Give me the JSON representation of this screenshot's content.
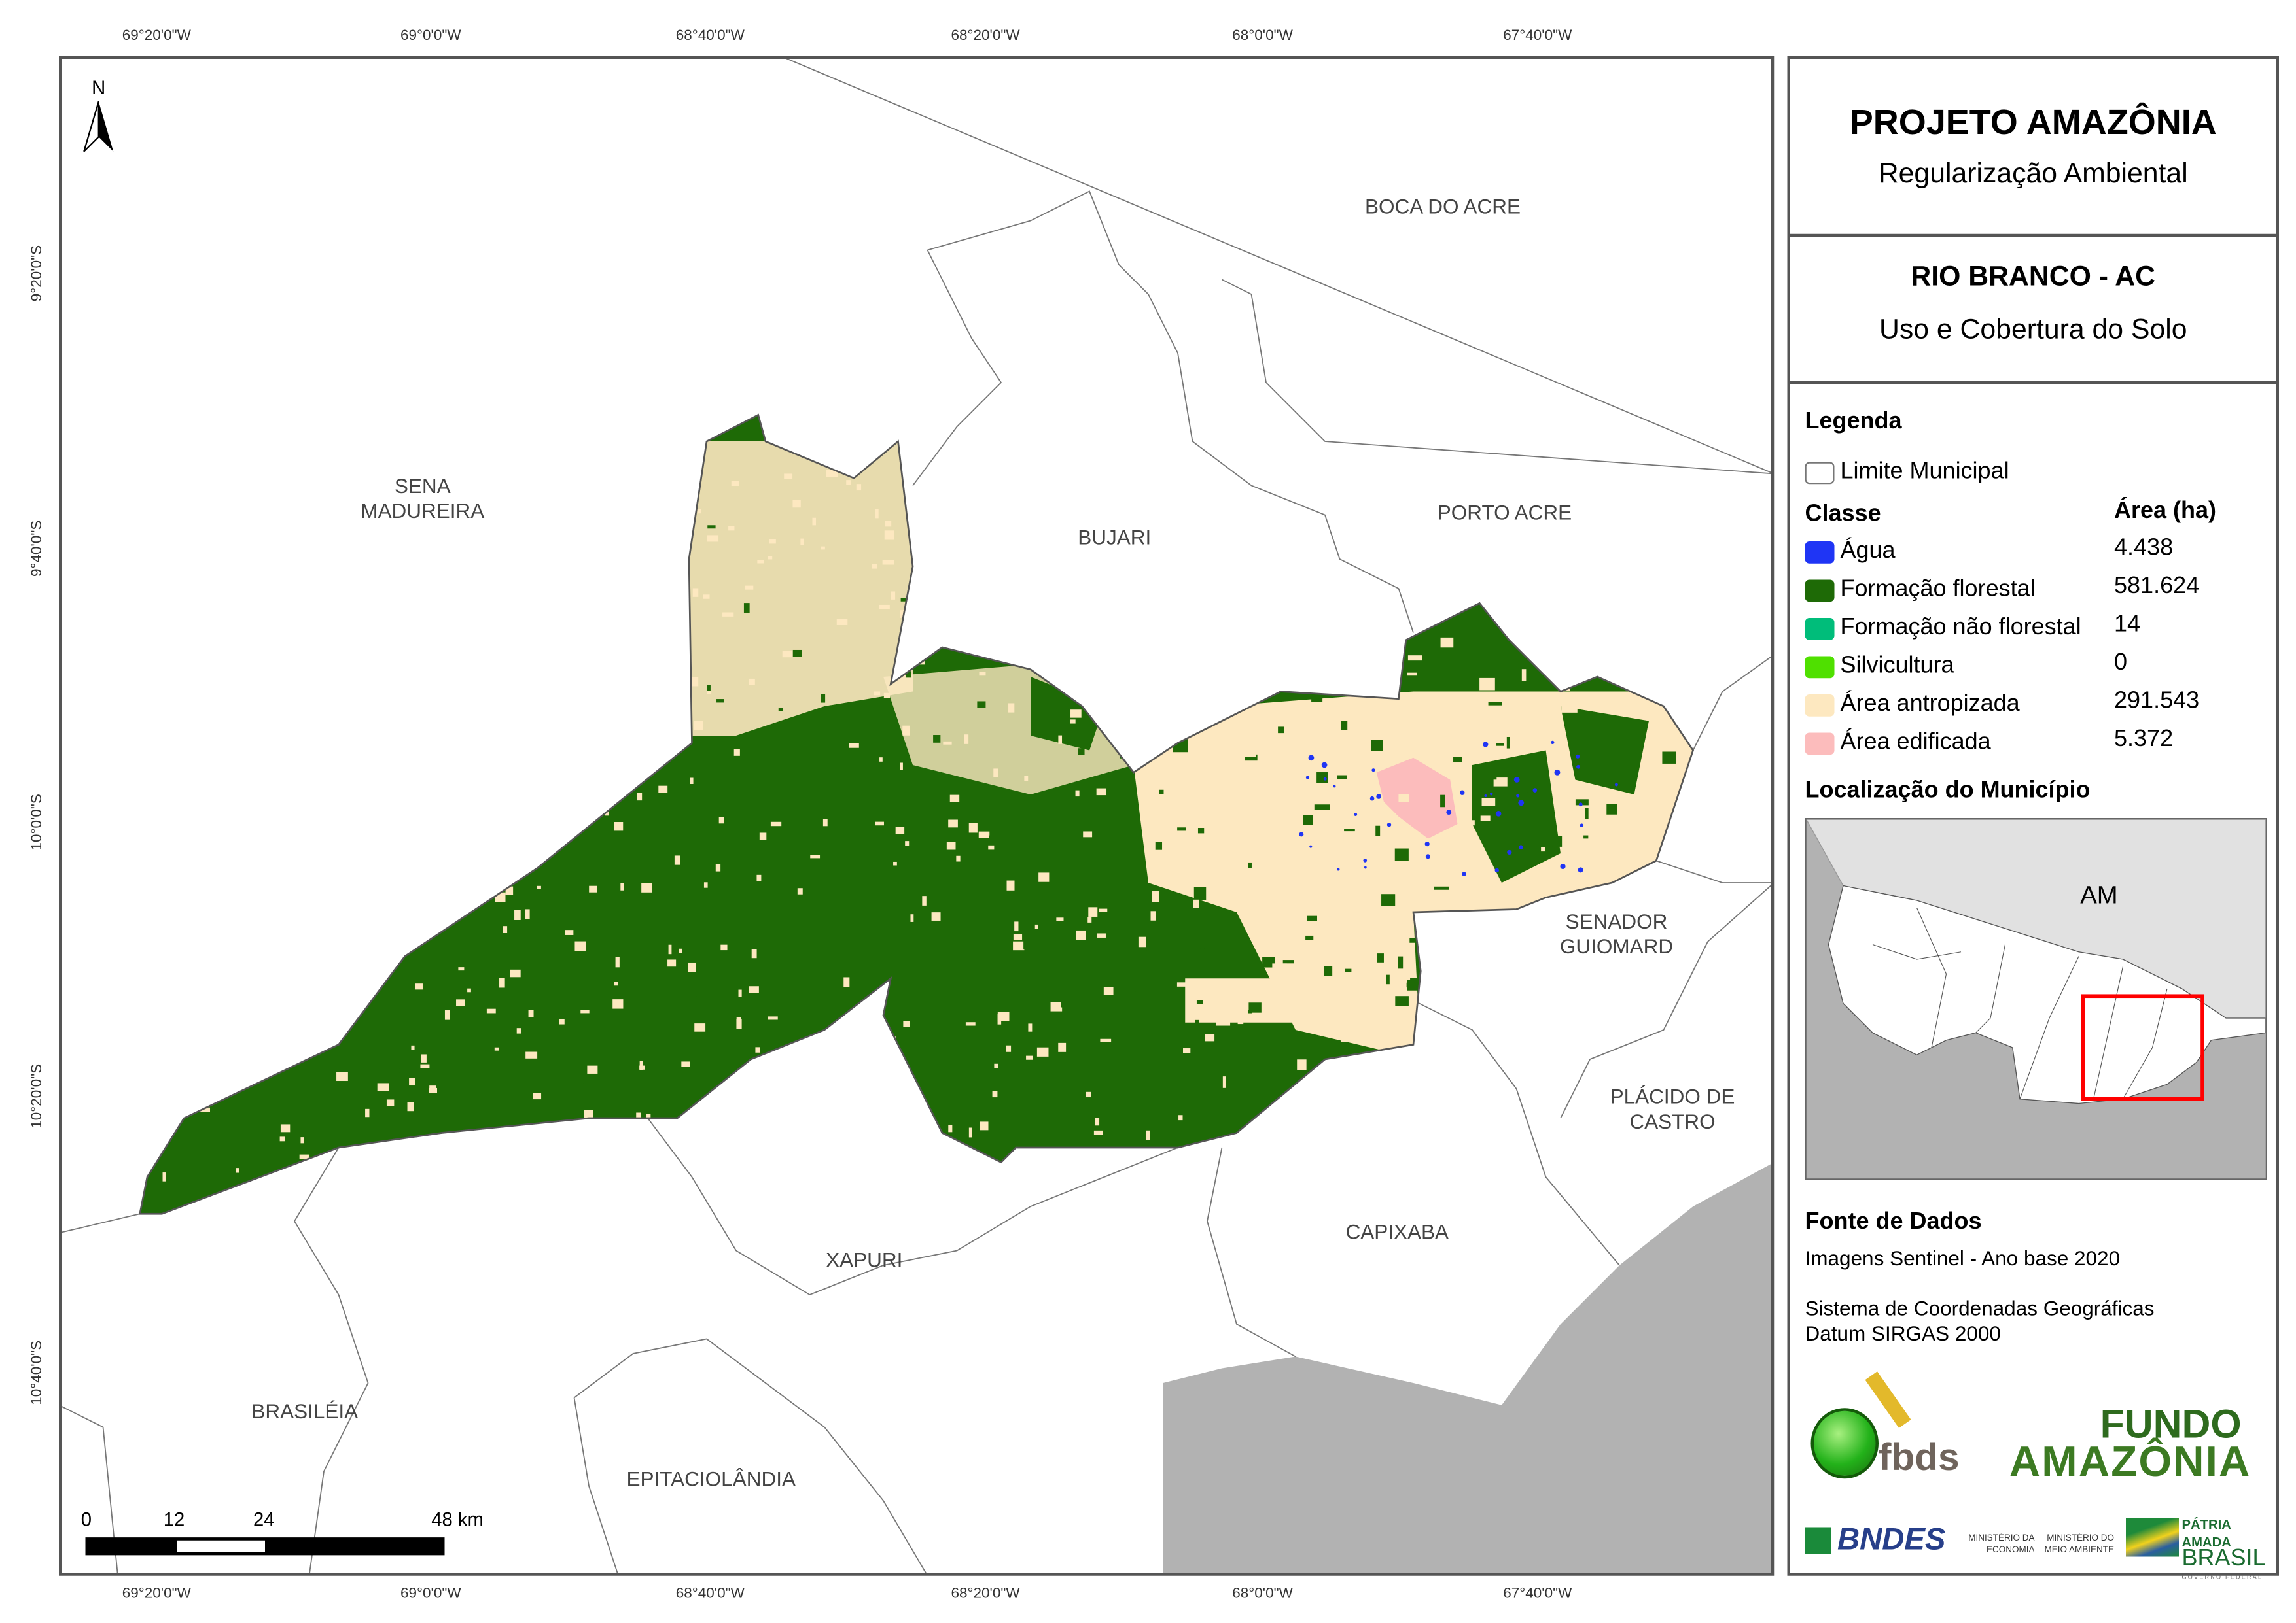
{
  "coords": {
    "lon_labels": [
      "69°20'0\"W",
      "69°0'0\"W",
      "68°40'0\"W",
      "68°20'0\"W",
      "68°0'0\"W",
      "67°40'0\"W"
    ],
    "lat_labels": [
      "9°20'0\"S",
      "9°40'0\"S",
      "10°0'0\"S",
      "10°20'0\"S",
      "10°40'0\"S"
    ]
  },
  "map": {
    "north_arrow": "N",
    "municipalities": [
      "BOCA DO ACRE",
      "SENA MADUREIRA",
      "BUJARI",
      "PORTO ACRE",
      "SENADOR GUIOMARD",
      "PLÁCIDO DE CASTRO",
      "CAPIXABA",
      "XAPURI",
      "BRASILÉIA",
      "EPITACIOLÂNDIA"
    ],
    "scale_bar": {
      "labels": [
        "0",
        "12",
        "24",
        "48 km"
      ]
    }
  },
  "panel": {
    "title": "PROJETO AMAZÔNIA",
    "subtitle": "Regularização Ambiental",
    "municipality": "RIO BRANCO - AC",
    "map_theme": "Uso e Cobertura do Solo",
    "legend_title": "Legenda",
    "boundary_label": "Limite Municipal",
    "class_header": "Classe",
    "area_header": "Área (ha)",
    "classes": [
      {
        "label": "Água",
        "area": "4.438",
        "color": "#1f35f5"
      },
      {
        "label": "Formação florestal",
        "area": "581.624",
        "color": "#1e6a06"
      },
      {
        "label": "Formação não florestal",
        "area": "14",
        "color": "#00bd7a"
      },
      {
        "label": "Silvicultura",
        "area": "0",
        "color": "#4fe000"
      },
      {
        "label": "Área antropizada",
        "area": "291.543",
        "color": "#fde8c0"
      },
      {
        "label": "Área edificada",
        "area": "5.372",
        "color": "#fcbcbc"
      }
    ],
    "location_title": "Localização do Município",
    "inset_state_label": "AM",
    "source_title": "Fonte de Dados",
    "source_line": "Imagens Sentinel - Ano base 2020",
    "crs_line1": "Sistema de Coordenadas Geográficas",
    "crs_line2": "Datum SIRGAS 2000",
    "logos": {
      "fbds": "fbds",
      "fundo_line1": "FUNDO",
      "fundo_line2": "AMAZÔNIA",
      "bndes": "BNDES",
      "min_economia": "MINISTÉRIO DA ECONOMIA",
      "min_meio": "MINISTÉRIO DO MEIO AMBIENTE",
      "patria1": "PÁTRIA AMADA",
      "patria2": "BRASIL",
      "patria3": "GOVERNO FEDERAL"
    }
  }
}
